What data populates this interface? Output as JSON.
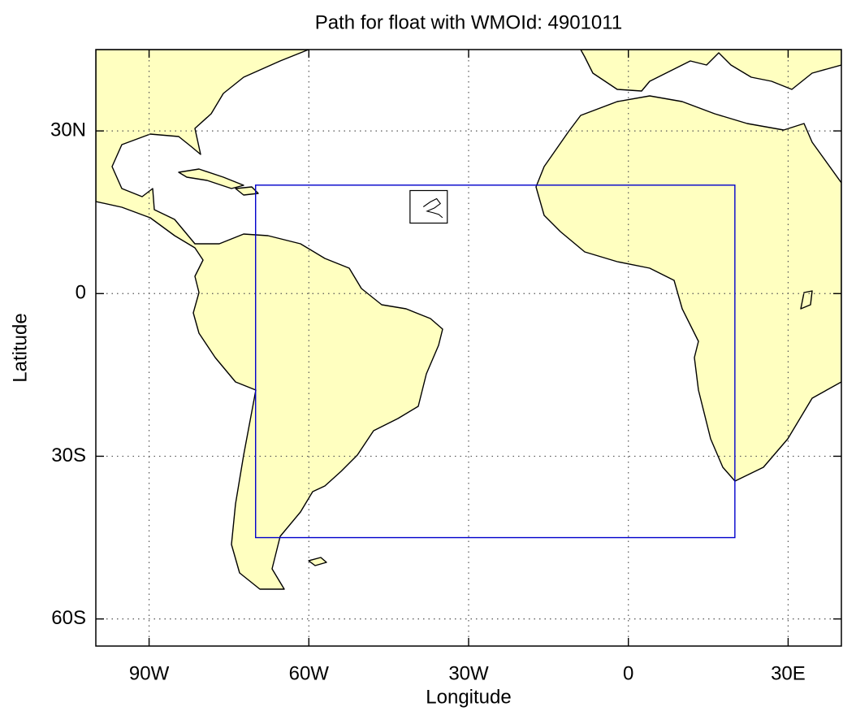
{
  "chart_data": {
    "type": "map",
    "title": "Path for float with WMOId: 4901011",
    "xlabel": "Longitude",
    "ylabel": "Latitude",
    "xlim": [
      -100,
      40
    ],
    "ylim": [
      -65,
      45
    ],
    "xticks": [
      {
        "value": -90,
        "label": "90W"
      },
      {
        "value": -60,
        "label": "60W"
      },
      {
        "value": -30,
        "label": "30W"
      },
      0,
      {
        "value": 30,
        "label": "30E"
      }
    ],
    "yticks": [
      {
        "value": 30,
        "label": "30N"
      },
      0,
      {
        "value": -30,
        "label": "30S"
      },
      {
        "value": -60,
        "label": "60S"
      }
    ],
    "grid": true,
    "land_color": "#ffffc0",
    "region": {
      "lon": [
        -70,
        20
      ],
      "lat": [
        -45,
        20
      ],
      "color": "#0000cc"
    },
    "track_box": {
      "lon": [
        -41,
        -34
      ],
      "lat": [
        13,
        19
      ]
    },
    "track": {
      "lon": [
        -38.5,
        -37.2,
        -36.0,
        -35.3,
        -36.4,
        -37.8,
        -36.6,
        -35.6,
        -34.9
      ],
      "lat": [
        16.0,
        16.9,
        17.5,
        16.6,
        15.8,
        15.2,
        14.9,
        14.6,
        14.0
      ]
    }
  }
}
